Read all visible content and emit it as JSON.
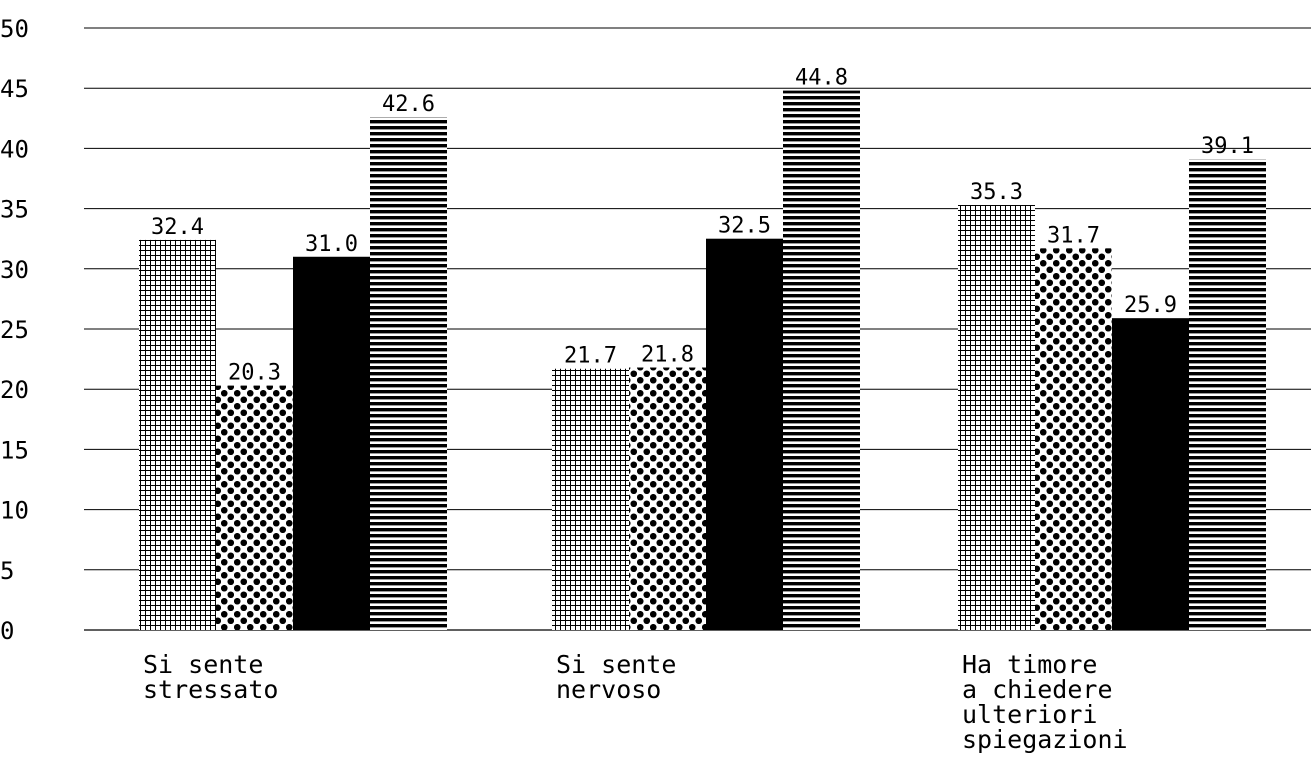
{
  "chart_data": {
    "type": "bar",
    "title": "",
    "xlabel": "",
    "ylabel": "",
    "ylim": [
      0,
      50
    ],
    "yticks": [
      0,
      5,
      10,
      15,
      20,
      25,
      30,
      35,
      40,
      45,
      50
    ],
    "grid": true,
    "legend": "none",
    "categories": [
      [
        "Si sente",
        "stressato"
      ],
      [
        "Si sente",
        "nervoso"
      ],
      [
        "Ha timore",
        "a chiedere",
        "ulteriori",
        "spiegazioni"
      ]
    ],
    "series": [
      {
        "pattern": "grid",
        "values": [
          32.4,
          21.7,
          35.3
        ]
      },
      {
        "pattern": "dots",
        "values": [
          20.3,
          21.8,
          31.7
        ]
      },
      {
        "pattern": "solid",
        "values": [
          31.0,
          32.5,
          25.9
        ]
      },
      {
        "pattern": "horizontal-lines",
        "values": [
          42.6,
          44.8,
          39.1
        ]
      }
    ],
    "colors": {
      "ink": "#000000",
      "background": "#ffffff"
    }
  }
}
